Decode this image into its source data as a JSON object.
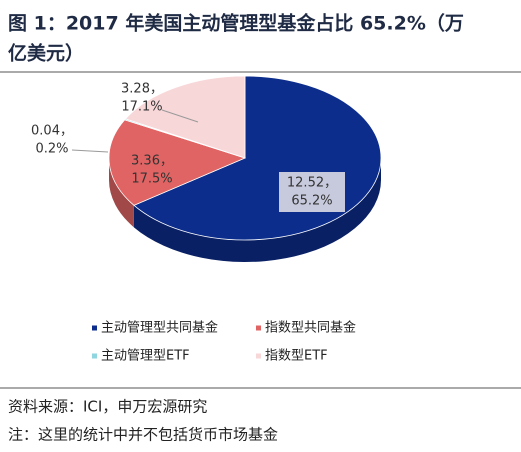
{
  "chart_data": {
    "type": "pie3d",
    "title_lines": [
      "图 1：2017 年美国主动管理型基金占比 65.2%（万",
      "亿美元）"
    ],
    "series": [
      {
        "name": "主动管理型共同基金",
        "color": "#0c2d8c",
        "values": [
          12.52
        ],
        "value_labels": [
          "12.52，"
        ],
        "percent_labels": [
          "65.2%"
        ]
      },
      {
        "name": "指数型共同基金",
        "color": "#e06464",
        "values": [
          3.36
        ],
        "value_labels": [
          "3.36，"
        ],
        "percent_labels": [
          "17.5%"
        ]
      },
      {
        "name": "主动管理型ETF",
        "color": "#8fd6e0",
        "values": [
          0.04
        ],
        "value_labels": [
          "0.04，"
        ],
        "percent_labels": [
          "0.2%"
        ]
      },
      {
        "name": "指数型ETF",
        "color": "#f8d7d9",
        "values": [
          3.28
        ],
        "value_labels": [
          "3.28，"
        ],
        "percent_labels": [
          "17.1%"
        ]
      }
    ],
    "source": "资料来源：ICI，申万宏源研究",
    "note": "注：这里的统计中并不包括货币市场基金"
  }
}
